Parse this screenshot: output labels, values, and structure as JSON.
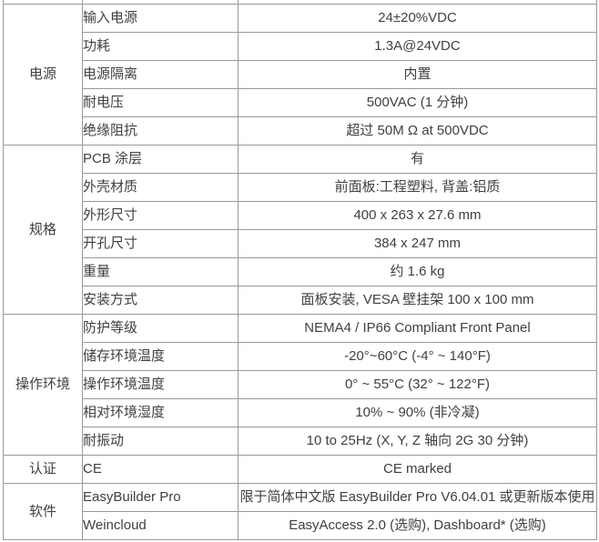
{
  "page": {
    "background": "#ffffff"
  },
  "table": {
    "colors": {
      "border": "#999999",
      "text": "#404040",
      "background": "#ffffff"
    },
    "columns": {
      "category_width": 87,
      "item_width": 171,
      "value_width": 394
    },
    "sections": [
      {
        "category": "电源",
        "rows": [
          {
            "item": "输入电源",
            "value": "24±20%VDC"
          },
          {
            "item": "功耗",
            "value": "1.3A@24VDC"
          },
          {
            "item": "电源隔离",
            "value": "内置"
          },
          {
            "item": "耐电压",
            "value": "500VAC (1 分钟)"
          },
          {
            "item": "绝缘阻抗",
            "value": "超过 50M Ω at 500VDC"
          }
        ]
      },
      {
        "category": "规格",
        "rows": [
          {
            "item": "PCB 涂层",
            "value": "有"
          },
          {
            "item": "外壳材质",
            "value": "前面板:工程塑料, 背盖:铝质"
          },
          {
            "item": "外形尺寸",
            "value": "400 x 263 x 27.6 mm"
          },
          {
            "item": "开孔尺寸",
            "value": "384 x 247 mm"
          },
          {
            "item": "重量",
            "value": "约 1.6 kg"
          },
          {
            "item": "安装方式",
            "value": "面板安装, VESA 壁挂架 100 x 100 mm"
          }
        ]
      },
      {
        "category": "操作环境",
        "rows": [
          {
            "item": "防护等级",
            "value": "NEMA4 / IP66 Compliant Front Panel"
          },
          {
            "item": "储存环境温度",
            "value": "-20°~60°C (-4° ~ 140°F)"
          },
          {
            "item": "操作环境温度",
            "value": "0° ~ 55°C (32° ~ 122°F)"
          },
          {
            "item": "相对环境湿度",
            "value": "10% ~ 90% (非冷凝)"
          },
          {
            "item": "耐振动",
            "value": "10 to 25Hz (X, Y, Z 轴向 2G 30 分钟)"
          }
        ]
      },
      {
        "category": "认证",
        "rows": [
          {
            "item": "CE",
            "value": "CE marked"
          }
        ]
      },
      {
        "category": "软件",
        "rows": [
          {
            "item": "EasyBuilder Pro",
            "value": "限于简体中文版 EasyBuilder Pro V6.04.01 或更新版本使用"
          },
          {
            "item": "Weincloud",
            "value": "EasyAccess 2.0 (选购), Dashboard* (选购)"
          }
        ]
      }
    ]
  }
}
